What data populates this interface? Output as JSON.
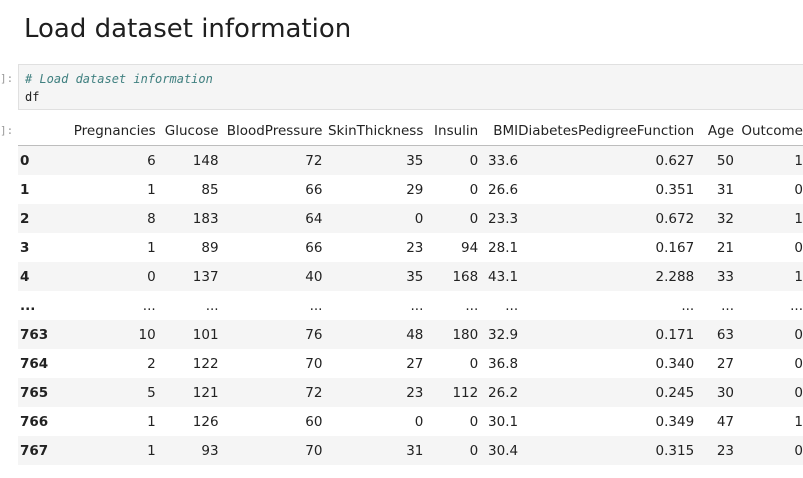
{
  "notebook": {
    "heading": "Load dataset information",
    "input_prompt": "]:",
    "output_prompt": "]:",
    "code_comment": "# Load dataset information",
    "code_line": "df"
  },
  "dataframe": {
    "columns": [
      "",
      "Pregnancies",
      "Glucose",
      "BloodPressure",
      "SkinThickness",
      "Insulin",
      "BMI",
      "DiabetesPedigreeFunction",
      "Age",
      "Outcome"
    ],
    "rows": [
      [
        "0",
        "6",
        "148",
        "72",
        "35",
        "0",
        "33.6",
        "0.627",
        "50",
        "1"
      ],
      [
        "1",
        "1",
        "85",
        "66",
        "29",
        "0",
        "26.6",
        "0.351",
        "31",
        "0"
      ],
      [
        "2",
        "8",
        "183",
        "64",
        "0",
        "0",
        "23.3",
        "0.672",
        "32",
        "1"
      ],
      [
        "3",
        "1",
        "89",
        "66",
        "23",
        "94",
        "28.1",
        "0.167",
        "21",
        "0"
      ],
      [
        "4",
        "0",
        "137",
        "40",
        "35",
        "168",
        "43.1",
        "2.288",
        "33",
        "1"
      ],
      [
        "...",
        "...",
        "...",
        "...",
        "...",
        "...",
        "...",
        "...",
        "...",
        "..."
      ],
      [
        "763",
        "10",
        "101",
        "76",
        "48",
        "180",
        "32.9",
        "0.171",
        "63",
        "0"
      ],
      [
        "764",
        "2",
        "122",
        "70",
        "27",
        "0",
        "36.8",
        "0.340",
        "27",
        "0"
      ],
      [
        "765",
        "5",
        "121",
        "72",
        "23",
        "112",
        "26.2",
        "0.245",
        "30",
        "0"
      ],
      [
        "766",
        "1",
        "126",
        "60",
        "0",
        "0",
        "30.1",
        "0.349",
        "47",
        "1"
      ],
      [
        "767",
        "1",
        "93",
        "70",
        "31",
        "0",
        "30.4",
        "0.315",
        "23",
        "0"
      ]
    ]
  }
}
